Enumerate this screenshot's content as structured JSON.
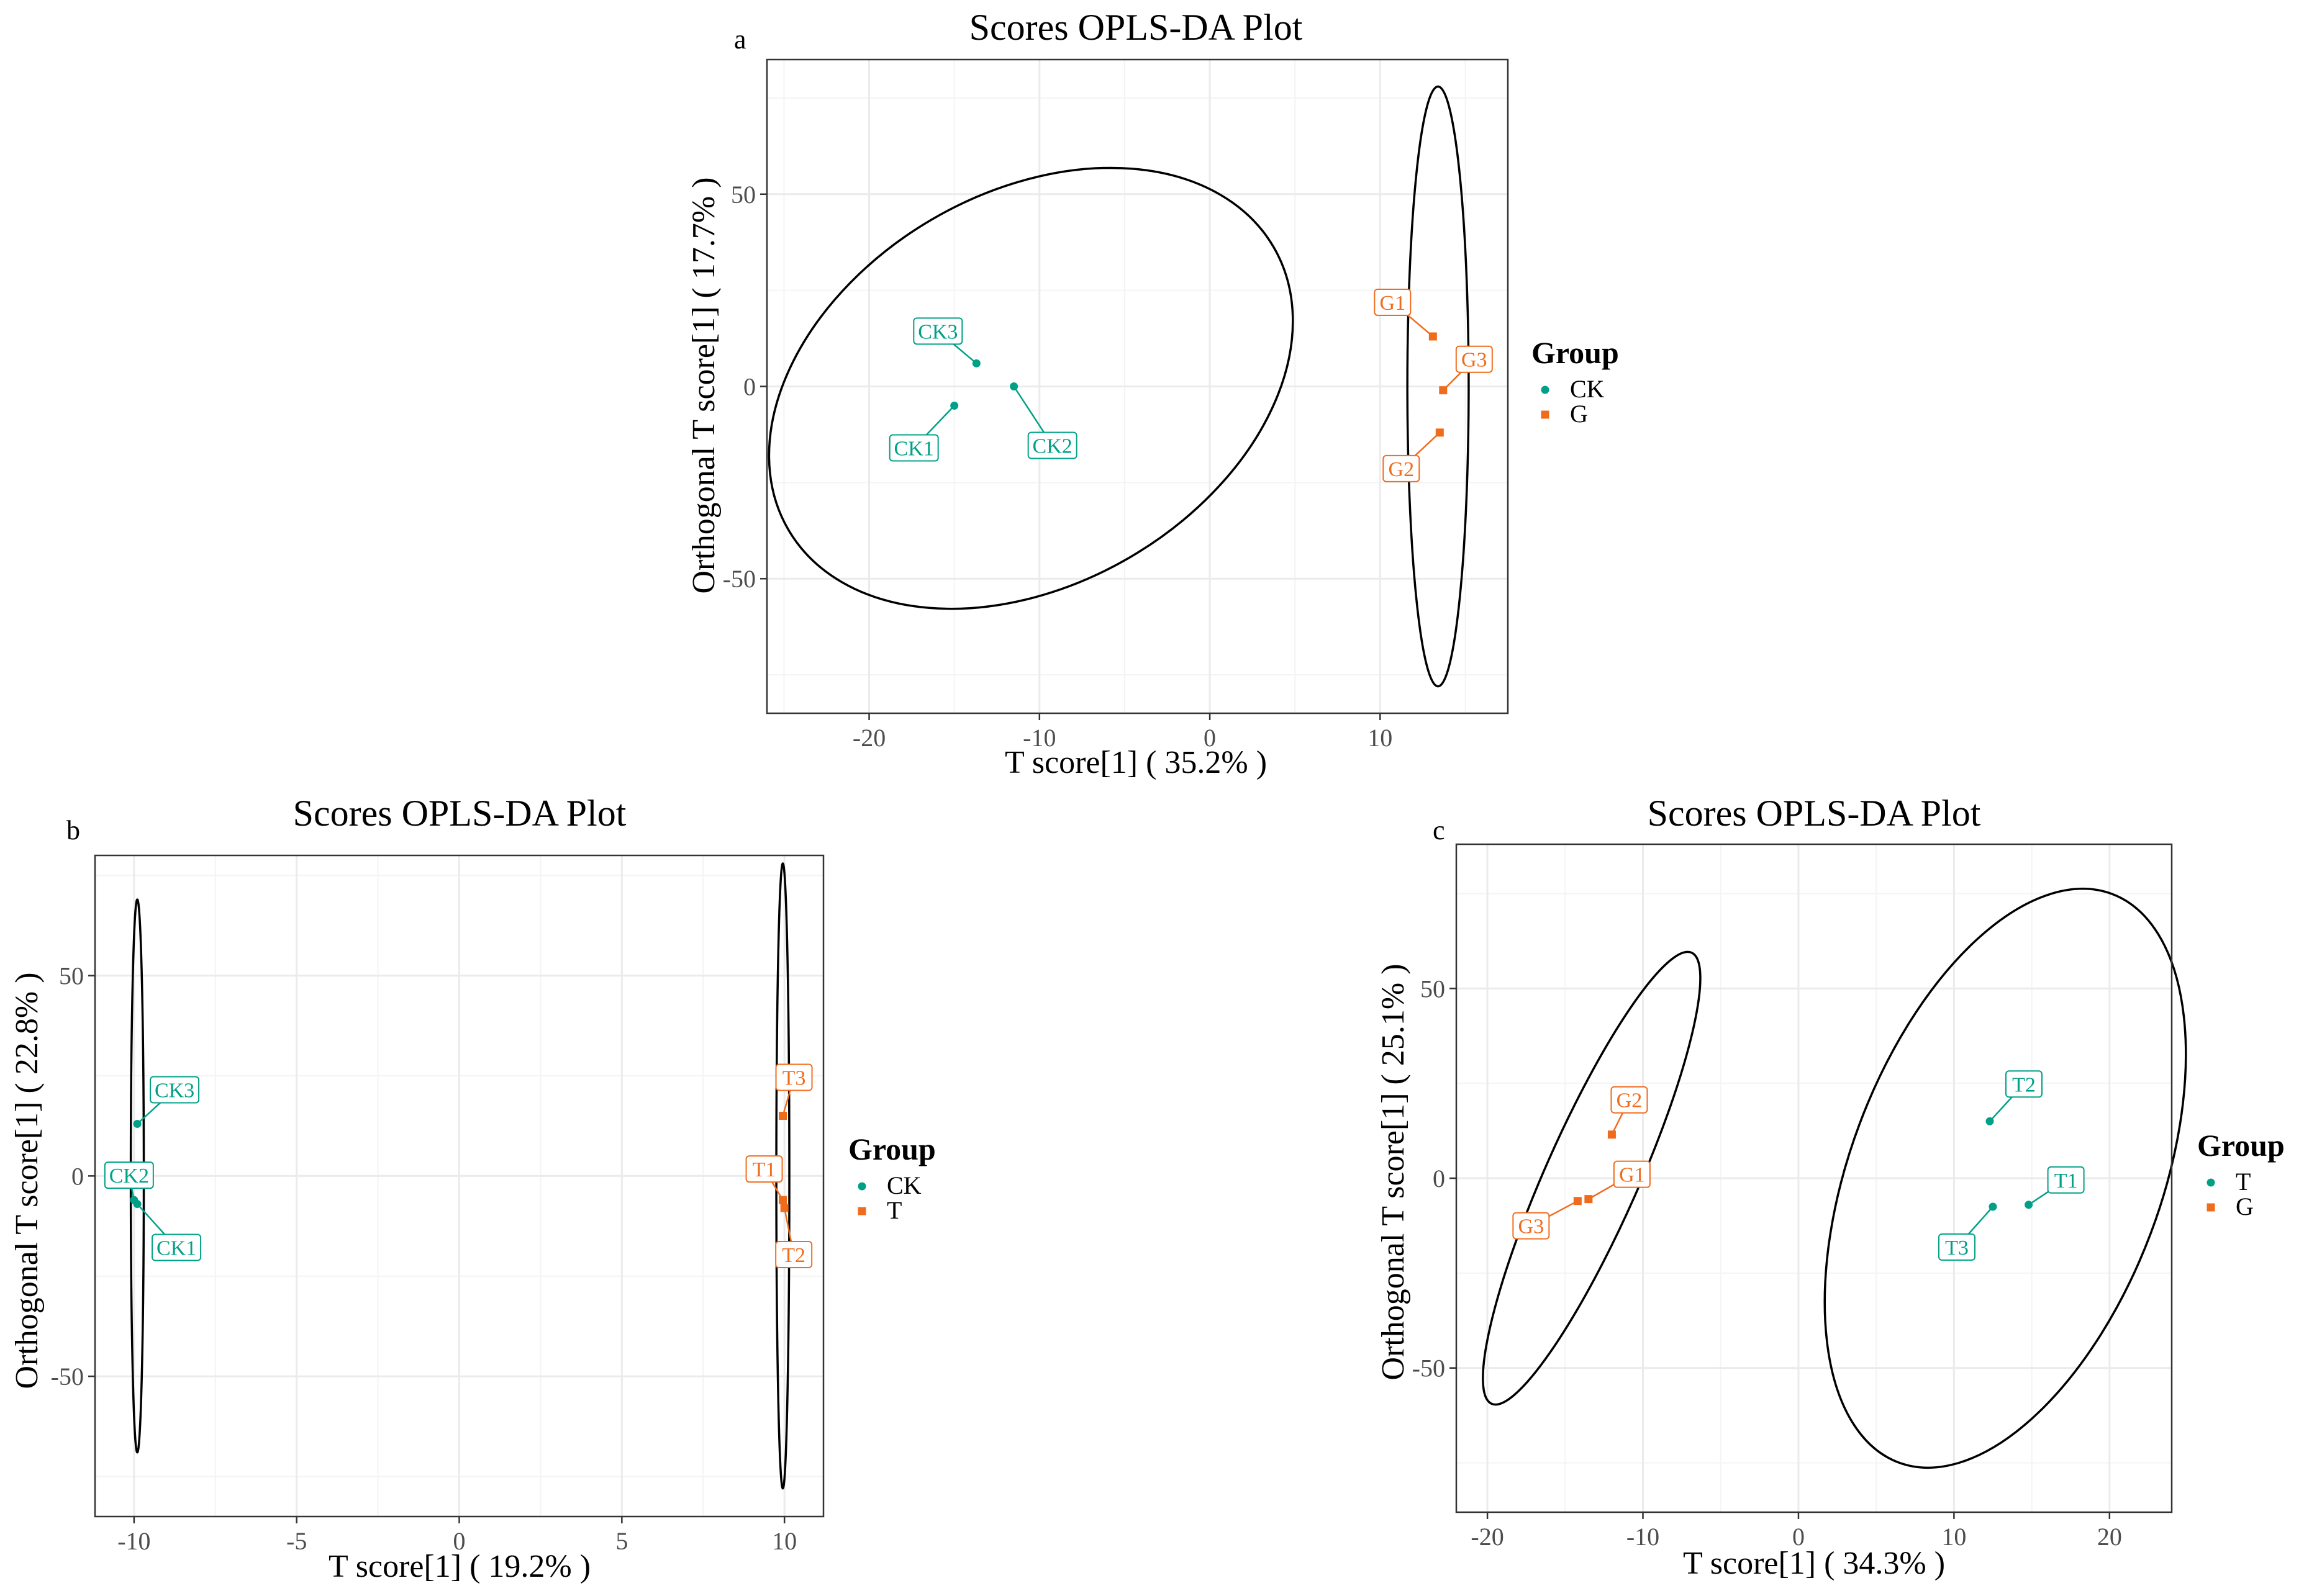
{
  "chart_data": [
    {
      "id": "a",
      "type": "scatter",
      "panel_letter": "a",
      "title": "Scores OPLS-DA Plot",
      "xlabel": "T score[1] ( 35.2% )",
      "ylabel": "Orthogonal T score[1] ( 17.7% )",
      "xlim": [
        -26,
        17.5
      ],
      "ylim": [
        -85,
        85
      ],
      "xticks": [
        -20,
        -10,
        0,
        10
      ],
      "yticks": [
        -50,
        0,
        50
      ],
      "grid": true,
      "legend": {
        "title": "Group",
        "placement": "right"
      },
      "series": [
        {
          "name": "CK",
          "color": "#00a087",
          "points": [
            {
              "label": "CK1",
              "x": -15,
              "y": -5
            },
            {
              "label": "CK2",
              "x": -11.5,
              "y": 0
            },
            {
              "label": "CK3",
              "x": -13.7,
              "y": 6
            }
          ],
          "ellipse": {
            "cx": -10.5,
            "cy": -0.5,
            "rx": 11.5,
            "ry": 73,
            "ax": 15.5,
            "ay": 40,
            "rot": 25
          }
        },
        {
          "name": "G",
          "color": "#f06c1d",
          "points": [
            {
              "label": "G1",
              "x": 13.1,
              "y": 13
            },
            {
              "label": "G2",
              "x": 13.5,
              "y": -12
            },
            {
              "label": "G3",
              "x": 13.7,
              "y": -1
            }
          ],
          "ellipse": {
            "cx": 13.4,
            "cy": 0,
            "rx": 1.8,
            "ry": 78,
            "ax": 0,
            "ay": 0,
            "rot": 0
          }
        }
      ]
    },
    {
      "id": "b",
      "type": "scatter",
      "panel_letter": "b",
      "title": "Scores OPLS-DA Plot",
      "xlabel": "T score[1] ( 19.2% )",
      "ylabel": "Orthogonal T score[1] ( 22.8% )",
      "xlim": [
        -11.2,
        11.2
      ],
      "ylim": [
        -85,
        80
      ],
      "xticks": [
        -10,
        -5,
        0,
        5,
        10
      ],
      "yticks": [
        -50,
        0,
        50
      ],
      "grid": true,
      "legend": {
        "title": "Group",
        "placement": "right"
      },
      "series": [
        {
          "name": "CK",
          "color": "#00a087",
          "points": [
            {
              "label": "CK1",
              "x": -9.9,
              "y": -7
            },
            {
              "label": "CK2",
              "x": -10,
              "y": -6
            },
            {
              "label": "CK3",
              "x": -9.9,
              "y": 13
            }
          ],
          "ellipse": {
            "cx": -9.9,
            "cy": 0,
            "rx": 0.2,
            "ry": 69,
            "ax": 0,
            "ay": 0,
            "rot": 0
          }
        },
        {
          "name": "T",
          "color": "#f06c1d",
          "points": [
            {
              "label": "T1",
              "x": 9.95,
              "y": -6
            },
            {
              "label": "T2",
              "x": 10,
              "y": -8
            },
            {
              "label": "T3",
              "x": 9.95,
              "y": 15
            }
          ],
          "ellipse": {
            "cx": 9.95,
            "cy": 0,
            "rx": 0.2,
            "ry": 78,
            "ax": 0,
            "ay": 0,
            "rot": 0
          }
        }
      ]
    },
    {
      "id": "c",
      "type": "scatter",
      "panel_letter": "c",
      "title": "Scores OPLS-DA Plot",
      "xlabel": "T score[1] ( 34.3% )",
      "ylabel": "Orthogonal T score[1] ( 25.1% )",
      "xlim": [
        -22,
        24
      ],
      "ylim": [
        -88,
        88
      ],
      "xticks": [
        -20,
        -10,
        0,
        10,
        20
      ],
      "yticks": [
        -50,
        0,
        50
      ],
      "grid": true,
      "legend": {
        "title": "Group",
        "placement": "right"
      },
      "series": [
        {
          "name": "T",
          "color": "#00a087",
          "points": [
            {
              "label": "T1",
              "x": 14.8,
              "y": -7
            },
            {
              "label": "T2",
              "x": 12.3,
              "y": 15
            },
            {
              "label": "T3",
              "x": 12.5,
              "y": -7.5
            }
          ],
          "ellipse": {
            "cx": 13.3,
            "cy": 0,
            "rx": 10,
            "ry": 80,
            "ax": 5.5,
            "ay": 60,
            "rot": 0
          }
        },
        {
          "name": "G",
          "color": "#f06c1d",
          "points": [
            {
              "label": "G1",
              "x": -13.5,
              "y": -5.5
            },
            {
              "label": "G2",
              "x": -12,
              "y": 11.5
            },
            {
              "label": "G3",
              "x": -14.2,
              "y": -6
            }
          ],
          "ellipse": {
            "cx": -13.3,
            "cy": 0,
            "rx": 3,
            "ry": 65,
            "ax": 6.6,
            "ay": 61,
            "rot": 0
          }
        }
      ]
    }
  ]
}
